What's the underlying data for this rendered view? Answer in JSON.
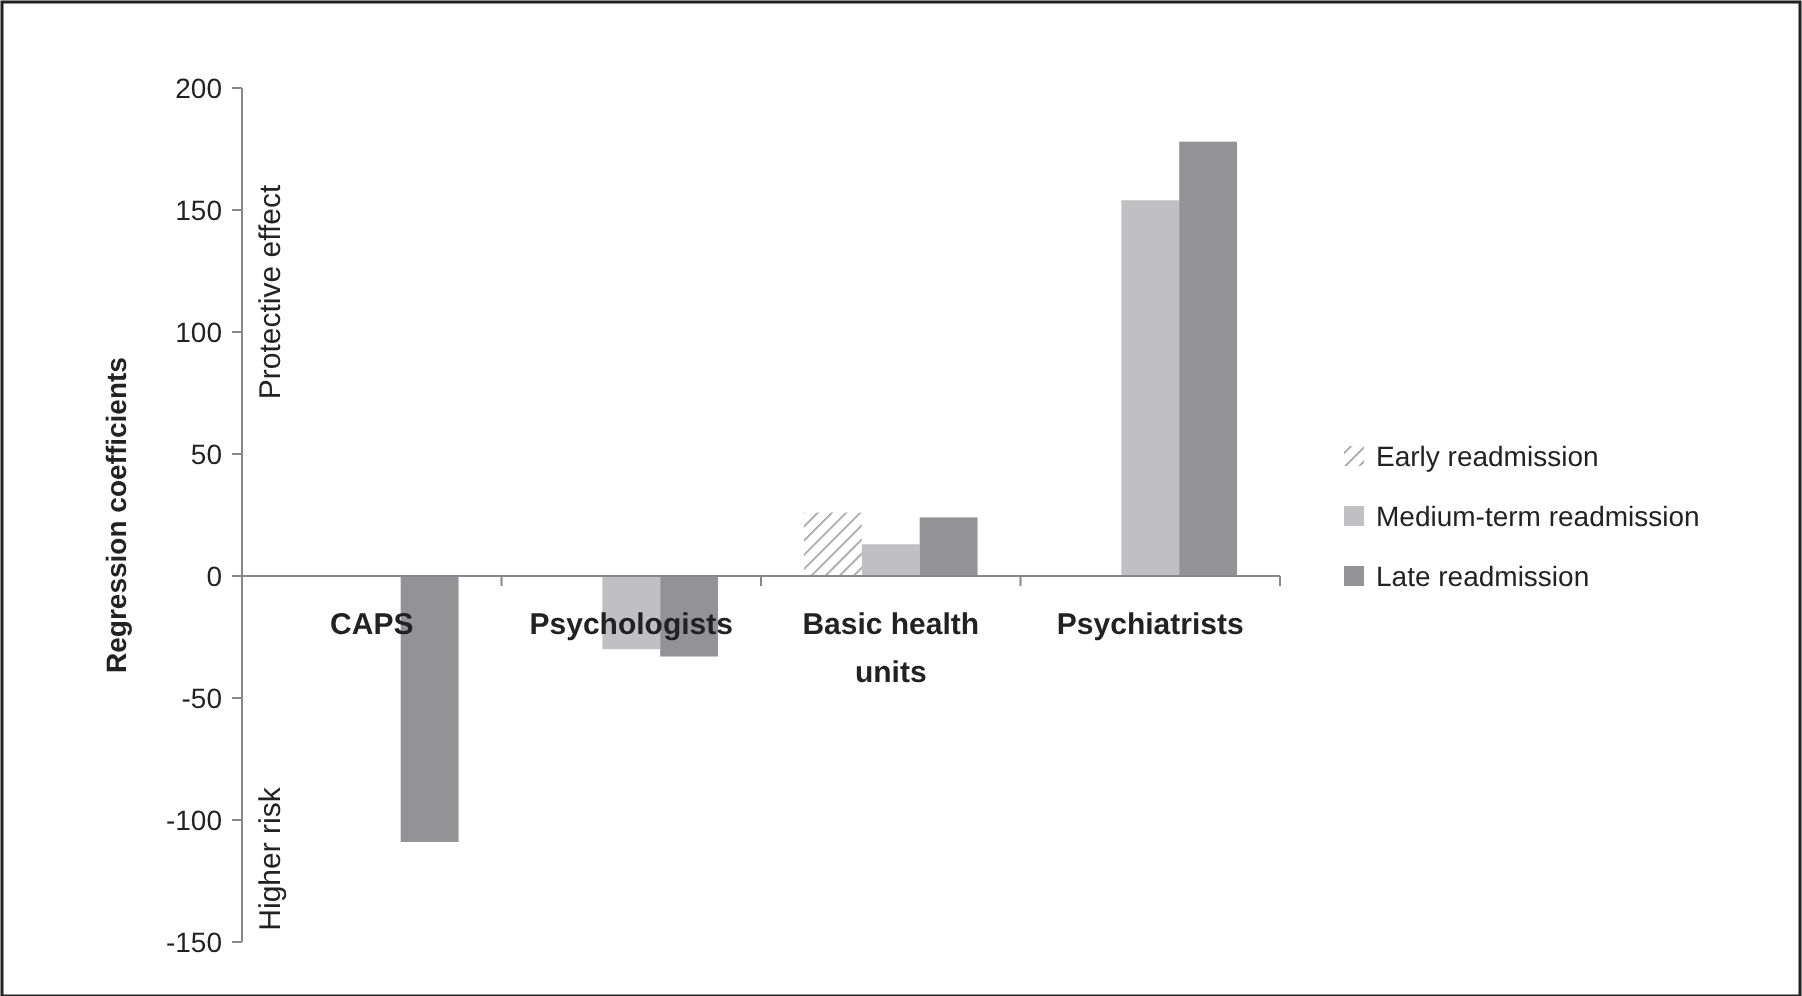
{
  "chart_data": {
    "type": "bar",
    "ylabel": "Regression coefficients",
    "categories": [
      "CAPS",
      "Psychologists",
      "Basic health units",
      "Psychiatrists"
    ],
    "series": [
      {
        "name": "Early readmission",
        "color": "#9a9a9a",
        "values": [
          null,
          null,
          26,
          null
        ]
      },
      {
        "name": "Medium-term readmission",
        "color": "#c0c0c2",
        "values": [
          null,
          -30,
          13,
          154
        ]
      },
      {
        "name": "Late readmission",
        "color": "#939396",
        "values": [
          -109,
          -33,
          24,
          178
        ]
      }
    ],
    "ylim": [
      -150,
      200
    ],
    "yticks": [
      -150,
      -100,
      -50,
      0,
      50,
      100,
      150,
      200
    ],
    "grid": false,
    "legend": "right",
    "annotations": [
      "Protective effect",
      "Higher risk"
    ]
  }
}
